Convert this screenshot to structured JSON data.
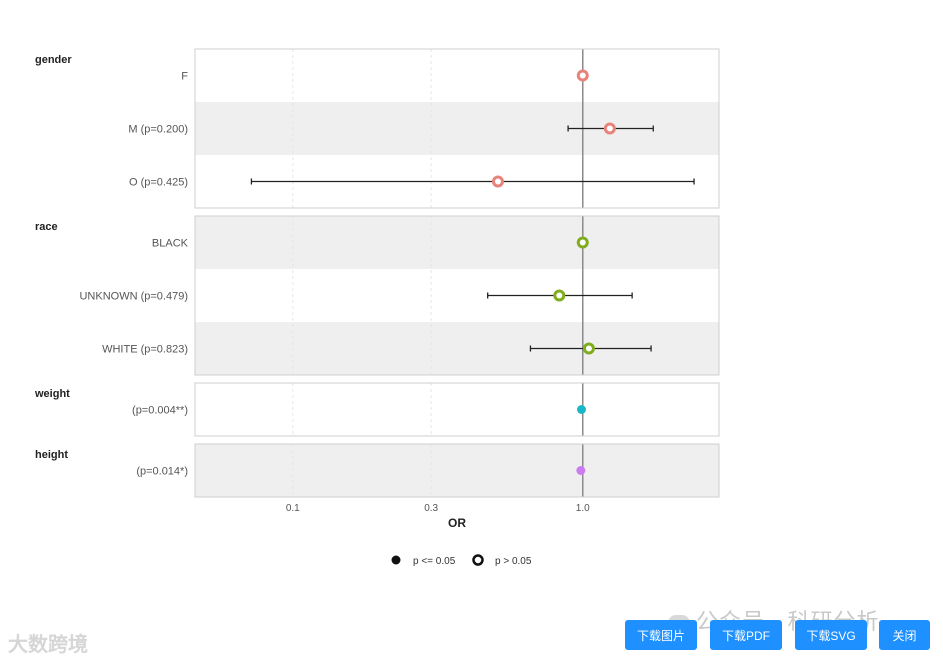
{
  "colors": {
    "gender": "#e8837a",
    "race": "#7fad1e",
    "weight": "#1ab7c7",
    "height": "#cc7cf2",
    "panel_gray": "#efefef",
    "button": "#1e90ff",
    "refline": "#8a8a8a"
  },
  "chart_data": {
    "type": "forest",
    "x_scale": "log",
    "xlabel": "OR",
    "x_ticks": [
      {
        "value": 0.1,
        "label": "0.1"
      },
      {
        "value": 0.3,
        "label": "0.3"
      },
      {
        "value": 1.0,
        "label": "1.0"
      }
    ],
    "xlim": [
      0.046,
      2.95
    ],
    "reference_line": 1.0,
    "groups": [
      {
        "name": "gender",
        "color_key": "gender",
        "rows": [
          {
            "label": "F",
            "or": 1.0,
            "lower": null,
            "upper": null,
            "significant": false,
            "shaded": false
          },
          {
            "label": "M (p=0.200)",
            "or": 1.24,
            "lower": 0.89,
            "upper": 1.75,
            "significant": false,
            "shaded": true
          },
          {
            "label": "O (p=0.425)",
            "or": 0.51,
            "lower": 0.072,
            "upper": 2.42,
            "significant": false,
            "shaded": false
          }
        ]
      },
      {
        "name": "race",
        "color_key": "race",
        "rows": [
          {
            "label": "BLACK",
            "or": 1.0,
            "lower": null,
            "upper": null,
            "significant": false,
            "shaded": true
          },
          {
            "label": "UNKNOWN (p=0.479)",
            "or": 0.83,
            "lower": 0.47,
            "upper": 1.48,
            "significant": false,
            "shaded": false
          },
          {
            "label": "WHITE (p=0.823)",
            "or": 1.05,
            "lower": 0.66,
            "upper": 1.72,
            "significant": false,
            "shaded": true
          }
        ]
      },
      {
        "name": "weight",
        "color_key": "weight",
        "rows": [
          {
            "label": "(p=0.004**)",
            "or": 0.99,
            "lower": null,
            "upper": null,
            "significant": true,
            "shaded": false
          }
        ]
      },
      {
        "name": "height",
        "color_key": "height",
        "rows": [
          {
            "label": "(p=0.014*)",
            "or": 0.985,
            "lower": null,
            "upper": null,
            "significant": true,
            "shaded": true
          }
        ]
      }
    ],
    "legend": {
      "placement": "bottom",
      "items": [
        {
          "label": "p <= 0.05",
          "marker": "filled"
        },
        {
          "label": "p > 0.05",
          "marker": "hollow"
        }
      ]
    }
  },
  "buttons": {
    "download_image": "下载图片",
    "download_pdf": "下载PDF",
    "download_svg": "下载SVG",
    "close": "关闭"
  },
  "watermarks": {
    "right": "公众号 · 科研分析",
    "left": "大数跨境"
  }
}
